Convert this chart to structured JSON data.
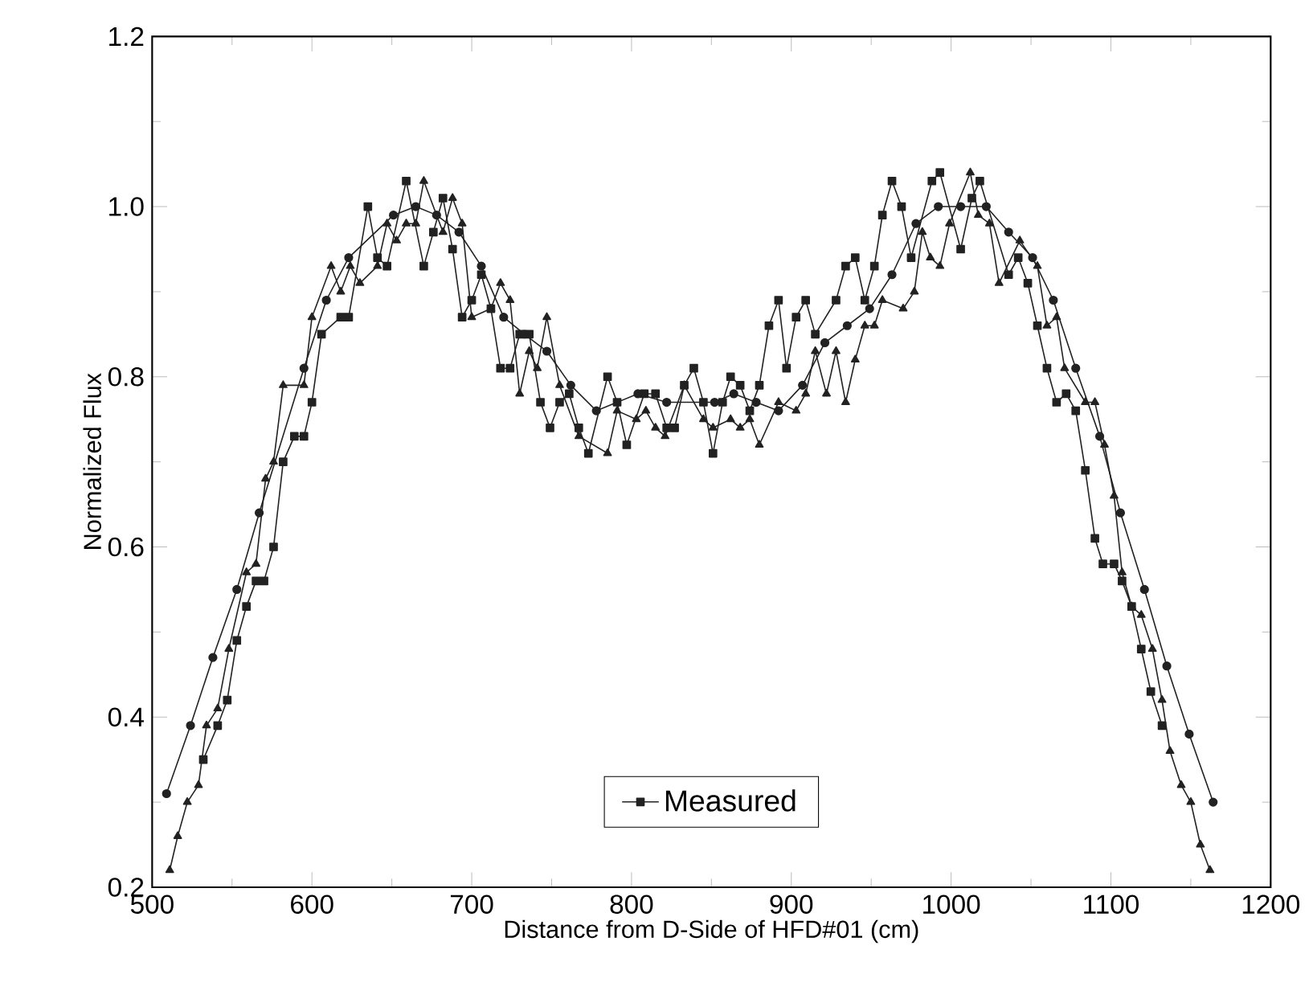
{
  "chart_data": {
    "type": "line",
    "xlabel": "Distance from D-Side of HFD#01 (cm)",
    "ylabel": "Normalized Flux",
    "xlim": [
      500,
      1200
    ],
    "xticks": [
      500,
      600,
      700,
      800,
      900,
      1000,
      1100,
      1200
    ],
    "ylim": [
      0.2,
      1.2
    ],
    "yticks": [
      {
        "value": 0.2,
        "label": "0.2"
      },
      {
        "value": 0.4,
        "label": "0.4"
      },
      {
        "value": 0.6,
        "label": "0.6"
      },
      {
        "value": 0.8,
        "label": "0.8"
      },
      {
        "value": 1.0,
        "label": "1.0"
      },
      {
        "value": 1.2,
        "label": "1.2"
      }
    ],
    "legend": "bottom",
    "line_style": "solid",
    "series": [
      {
        "name": "Measured",
        "color": "#222222",
        "marker": "square",
        "x": [
          532,
          541,
          547,
          553,
          559,
          565,
          570,
          576,
          582,
          589,
          595,
          600,
          606,
          618,
          623,
          635,
          641,
          647,
          659,
          670,
          676,
          682,
          688,
          694,
          700,
          706,
          712,
          718,
          724,
          730,
          736,
          743,
          749,
          755,
          761,
          767,
          773,
          785,
          791,
          797,
          808,
          815,
          822,
          827,
          833,
          839,
          845,
          851,
          857,
          862,
          868,
          874,
          880,
          886,
          892,
          897,
          903,
          909,
          915,
          928,
          934,
          940,
          946,
          952,
          957,
          963,
          969,
          975,
          988,
          993,
          1006,
          1013,
          1018,
          1036,
          1042,
          1048,
          1054,
          1060,
          1066,
          1072,
          1078,
          1084,
          1090,
          1095,
          1102,
          1107,
          1113,
          1119,
          1125,
          1132
        ],
        "values": [
          0.35,
          0.39,
          0.42,
          0.49,
          0.53,
          0.56,
          0.56,
          0.6,
          0.7,
          0.73,
          0.73,
          0.77,
          0.85,
          0.87,
          0.87,
          1.0,
          0.94,
          0.93,
          1.03,
          0.93,
          0.97,
          1.01,
          0.95,
          0.87,
          0.89,
          0.92,
          0.88,
          0.81,
          0.81,
          0.85,
          0.85,
          0.77,
          0.74,
          0.77,
          0.78,
          0.74,
          0.71,
          0.8,
          0.77,
          0.72,
          0.78,
          0.78,
          0.74,
          0.74,
          0.79,
          0.81,
          0.77,
          0.71,
          0.77,
          0.8,
          0.79,
          0.76,
          0.79,
          0.86,
          0.89,
          0.81,
          0.87,
          0.89,
          0.85,
          0.89,
          0.93,
          0.94,
          0.89,
          0.93,
          0.99,
          1.03,
          1.0,
          0.94,
          1.03,
          1.04,
          0.95,
          1.01,
          1.03,
          0.92,
          0.94,
          0.91,
          0.86,
          0.81,
          0.77,
          0.78,
          0.76,
          0.69,
          0.61,
          0.58,
          0.58,
          0.56,
          0.53,
          0.48,
          0.43,
          0.39
        ]
      },
      {
        "color": "#222222",
        "marker": "circle",
        "x": [
          509,
          524,
          538,
          553,
          567,
          595,
          609,
          623,
          651,
          665,
          678,
          692,
          706,
          720,
          733,
          747,
          762,
          778,
          804,
          822,
          852,
          864,
          878,
          892,
          907,
          921,
          935,
          949,
          963,
          978,
          992,
          1006,
          1022,
          1036,
          1051,
          1064,
          1078,
          1093,
          1106,
          1121,
          1135,
          1149,
          1164
        ],
        "values": [
          0.31,
          0.39,
          0.47,
          0.55,
          0.64,
          0.81,
          0.89,
          0.94,
          0.99,
          1.0,
          0.99,
          0.97,
          0.93,
          0.87,
          0.85,
          0.83,
          0.79,
          0.76,
          0.78,
          0.77,
          0.77,
          0.78,
          0.77,
          0.76,
          0.79,
          0.84,
          0.86,
          0.88,
          0.92,
          0.98,
          1.0,
          1.0,
          1.0,
          0.97,
          0.94,
          0.89,
          0.81,
          0.73,
          0.64,
          0.55,
          0.46,
          0.38,
          0.3
        ]
      },
      {
        "color": "#222222",
        "marker": "triangle",
        "x": [
          511,
          516,
          522,
          529,
          534,
          541,
          548,
          559,
          565,
          571,
          576,
          582,
          595,
          600,
          612,
          618,
          624,
          630,
          641,
          647,
          653,
          659,
          665,
          670,
          682,
          688,
          694,
          700,
          712,
          718,
          724,
          730,
          736,
          741,
          747,
          755,
          767,
          785,
          791,
          803,
          809,
          815,
          821,
          833,
          845,
          851,
          862,
          868,
          874,
          880,
          892,
          903,
          909,
          915,
          922,
          928,
          934,
          940,
          946,
          952,
          957,
          970,
          977,
          982,
          987,
          993,
          999,
          1012,
          1017,
          1024,
          1030,
          1043,
          1054,
          1060,
          1066,
          1071,
          1084,
          1090,
          1096,
          1102,
          1107,
          1113,
          1119,
          1126,
          1132,
          1137,
          1144,
          1150,
          1156,
          1162
        ],
        "values": [
          0.22,
          0.26,
          0.3,
          0.32,
          0.39,
          0.41,
          0.48,
          0.57,
          0.58,
          0.68,
          0.7,
          0.79,
          0.79,
          0.87,
          0.93,
          0.9,
          0.93,
          0.91,
          0.93,
          0.98,
          0.96,
          0.98,
          0.98,
          1.03,
          0.97,
          1.01,
          0.98,
          0.87,
          0.88,
          0.91,
          0.89,
          0.78,
          0.83,
          0.81,
          0.87,
          0.79,
          0.73,
          0.71,
          0.76,
          0.75,
          0.76,
          0.74,
          0.73,
          0.79,
          0.75,
          0.74,
          0.75,
          0.74,
          0.75,
          0.72,
          0.77,
          0.76,
          0.78,
          0.83,
          0.78,
          0.83,
          0.77,
          0.82,
          0.86,
          0.86,
          0.89,
          0.88,
          0.9,
          0.97,
          0.94,
          0.93,
          0.98,
          1.04,
          0.99,
          0.98,
          0.91,
          0.96,
          0.93,
          0.86,
          0.87,
          0.81,
          0.77,
          0.77,
          0.72,
          0.66,
          0.57,
          0.53,
          0.52,
          0.48,
          0.42,
          0.36,
          0.32,
          0.3,
          0.25,
          0.22
        ]
      }
    ]
  }
}
